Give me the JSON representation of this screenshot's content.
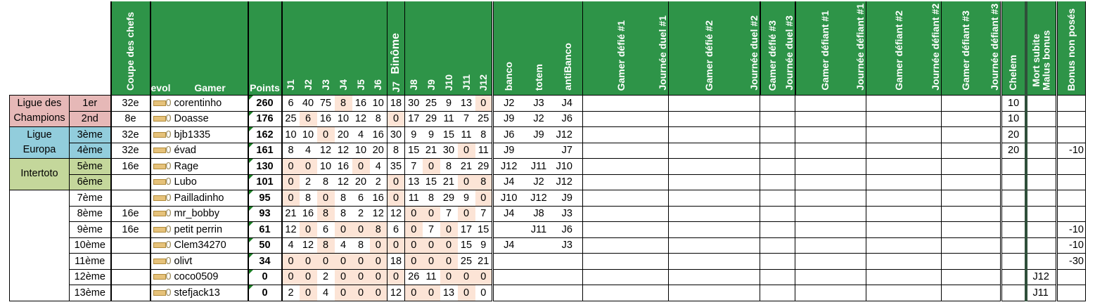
{
  "headers": {
    "coupe": "Coupe des chefs",
    "evol": "evol",
    "gamer": "Gamer",
    "points": "Points",
    "days": [
      "J1",
      "J2",
      "J3",
      "J4",
      "J5",
      "J6",
      "J7",
      "J8",
      "J9",
      "J10",
      "J11",
      "J12"
    ],
    "binome": "Binôme",
    "banco": "banco",
    "totem": "totem",
    "antibanco": "antiBanco",
    "duels": [
      "Gamer défié #1",
      "Journée duel #1",
      "Gamer défié #2",
      "Journée duel #2",
      "Gamer défié #3",
      "Journée duel #3",
      "Gamer défiant #1",
      "Journée défiant #1",
      "Gamer défiant #2",
      "Journée défiant #2",
      "Gamer défiant #3",
      "Journée défiant #3"
    ],
    "chelem": "Chelem",
    "mort_subite": "Mort subite",
    "malus_bonus": "Malus bonus",
    "bonus_non_poses": "Bonus non posés"
  },
  "leagues": [
    {
      "label": "Ligue des Champions",
      "rows": 2,
      "color": "#E6B8B7"
    },
    {
      "label": "Ligue Europa",
      "rows": 2,
      "color": "#92CDDC"
    },
    {
      "label": "Intertoto",
      "rows": 2,
      "color": "#C4D79B"
    },
    {
      "label": "",
      "rows": 7,
      "color": "#FFFFFF"
    }
  ],
  "highlight_color": "#FCE4D6",
  "header_color": "#2E9448",
  "rows": [
    {
      "rank": "1er",
      "coupe": "32e",
      "evol": "0",
      "gamer": "corentinho",
      "points": "260",
      "j": [
        "6",
        "40",
        "75",
        "8",
        "16",
        "10",
        "18",
        "30",
        "25",
        "9",
        "13",
        "0"
      ],
      "hl": [
        4,
        12
      ],
      "banco": "J2",
      "totem": "J3",
      "antibanco": "J4",
      "chelem": "10",
      "mort": "",
      "bonus": ""
    },
    {
      "rank": "2nd",
      "coupe": "8e",
      "evol": "0",
      "gamer": "Doasse",
      "points": "176",
      "j": [
        "25",
        "6",
        "16",
        "10",
        "12",
        "8",
        "0",
        "17",
        "29",
        "11",
        "7",
        "25"
      ],
      "hl": [
        2,
        7
      ],
      "banco": "J9",
      "totem": "J2",
      "antibanco": "J6",
      "chelem": "10",
      "mort": "",
      "bonus": ""
    },
    {
      "rank": "3ème",
      "coupe": "32e",
      "evol": "0",
      "gamer": "bjb1335",
      "points": "162",
      "j": [
        "10",
        "10",
        "0",
        "20",
        "4",
        "16",
        "30",
        "9",
        "9",
        "15",
        "11",
        "8"
      ],
      "hl": [
        3
      ],
      "banco": "J6",
      "totem": "J9",
      "antibanco": "J12",
      "chelem": "20",
      "mort": "",
      "bonus": ""
    },
    {
      "rank": "4ème",
      "coupe": "32e",
      "evol": "0",
      "gamer": "évad",
      "points": "161",
      "j": [
        "8",
        "4",
        "12",
        "12",
        "10",
        "20",
        "8",
        "15",
        "21",
        "30",
        "0",
        "11"
      ],
      "hl": [
        11
      ],
      "banco": "J9",
      "totem": "",
      "antibanco": "J7",
      "chelem": "20",
      "mort": "",
      "bonus": "-10"
    },
    {
      "rank": "5ème",
      "coupe": "16e",
      "evol": "0",
      "gamer": "Rage",
      "points": "130",
      "j": [
        "0",
        "0",
        "10",
        "16",
        "0",
        "4",
        "35",
        "7",
        "0",
        "8",
        "21",
        "29"
      ],
      "hl": [
        1,
        2,
        5,
        9
      ],
      "banco": "J12",
      "totem": "J11",
      "antibanco": "J10",
      "chelem": "",
      "mort": "",
      "bonus": ""
    },
    {
      "rank": "6ème",
      "coupe": "",
      "evol": "0",
      "gamer": "Lubo",
      "points": "101",
      "j": [
        "0",
        "2",
        "8",
        "12",
        "20",
        "2",
        "0",
        "13",
        "15",
        "21",
        "0",
        "8"
      ],
      "hl": [
        1,
        7,
        11,
        12
      ],
      "banco": "J4",
      "totem": "J2",
      "antibanco": "J12",
      "chelem": "",
      "mort": "",
      "bonus": ""
    },
    {
      "rank": "7ème",
      "coupe": "",
      "evol": "0",
      "gamer": "Pailladinho",
      "points": "95",
      "j": [
        "0",
        "8",
        "0",
        "8",
        "6",
        "16",
        "0",
        "11",
        "8",
        "29",
        "9",
        "0"
      ],
      "hl": [
        1,
        3,
        7,
        12
      ],
      "banco": "J10",
      "totem": "J12",
      "antibanco": "J9",
      "chelem": "",
      "mort": "",
      "bonus": ""
    },
    {
      "rank": "8ème",
      "coupe": "16e",
      "evol": "0",
      "gamer": "mr_bobby",
      "points": "93",
      "j": [
        "21",
        "16",
        "8",
        "8",
        "2",
        "12",
        "12",
        "0",
        "0",
        "7",
        "0",
        "7"
      ],
      "hl": [
        3,
        8,
        9,
        11
      ],
      "banco": "J4",
      "totem": "J8",
      "antibanco": "J3",
      "chelem": "",
      "mort": "",
      "bonus": ""
    },
    {
      "rank": "9ème",
      "coupe": "16e",
      "evol": "0",
      "gamer": "petit perrin",
      "points": "61",
      "j": [
        "12",
        "0",
        "6",
        "0",
        "0",
        "8",
        "6",
        "0",
        "7",
        "0",
        "17",
        "15"
      ],
      "hl": [
        2,
        4,
        5,
        6,
        8,
        10
      ],
      "banco": "",
      "totem": "J11",
      "antibanco": "J6",
      "chelem": "",
      "mort": "",
      "bonus": "-10"
    },
    {
      "rank": "10ème",
      "coupe": "",
      "evol": "0",
      "gamer": "Clem34270",
      "points": "50",
      "j": [
        "4",
        "12",
        "8",
        "4",
        "8",
        "0",
        "0",
        "0",
        "0",
        "0",
        "15",
        "9"
      ],
      "hl": [
        3,
        6,
        7,
        8,
        9,
        10
      ],
      "banco": "J4",
      "totem": "",
      "antibanco": "J3",
      "chelem": "",
      "mort": "",
      "bonus": "-10"
    },
    {
      "rank": "11ème",
      "coupe": "",
      "evol": "0",
      "gamer": "olivt",
      "points": "34",
      "j": [
        "0",
        "0",
        "0",
        "0",
        "0",
        "0",
        "18",
        "0",
        "0",
        "0",
        "25",
        "21"
      ],
      "hl": [
        1,
        2,
        3,
        4,
        5,
        6,
        8,
        9,
        10
      ],
      "banco": "",
      "totem": "",
      "antibanco": "",
      "chelem": "",
      "mort": "",
      "bonus": "-30"
    },
    {
      "rank": "12ème",
      "coupe": "",
      "evol": "0",
      "gamer": "coco0509",
      "points": "0",
      "j": [
        "0",
        "0",
        "2",
        "0",
        "0",
        "0",
        "0",
        "26",
        "11",
        "0",
        "0",
        "0"
      ],
      "hl": [
        1,
        2,
        4,
        5,
        6,
        7,
        10,
        11,
        12
      ],
      "banco": "",
      "totem": "",
      "antibanco": "",
      "chelem": "",
      "mort": "J12",
      "bonus": ""
    },
    {
      "rank": "13ème",
      "coupe": "",
      "evol": "0",
      "gamer": "stefjack13",
      "points": "0",
      "j": [
        "2",
        "0",
        "4",
        "0",
        "0",
        "0",
        "12",
        "0",
        "0",
        "13",
        "0",
        "0"
      ],
      "hl": [
        2,
        4,
        5,
        6,
        8,
        9,
        11
      ],
      "banco": "",
      "totem": "",
      "antibanco": "",
      "chelem": "",
      "mort": "J11",
      "bonus": ""
    }
  ]
}
